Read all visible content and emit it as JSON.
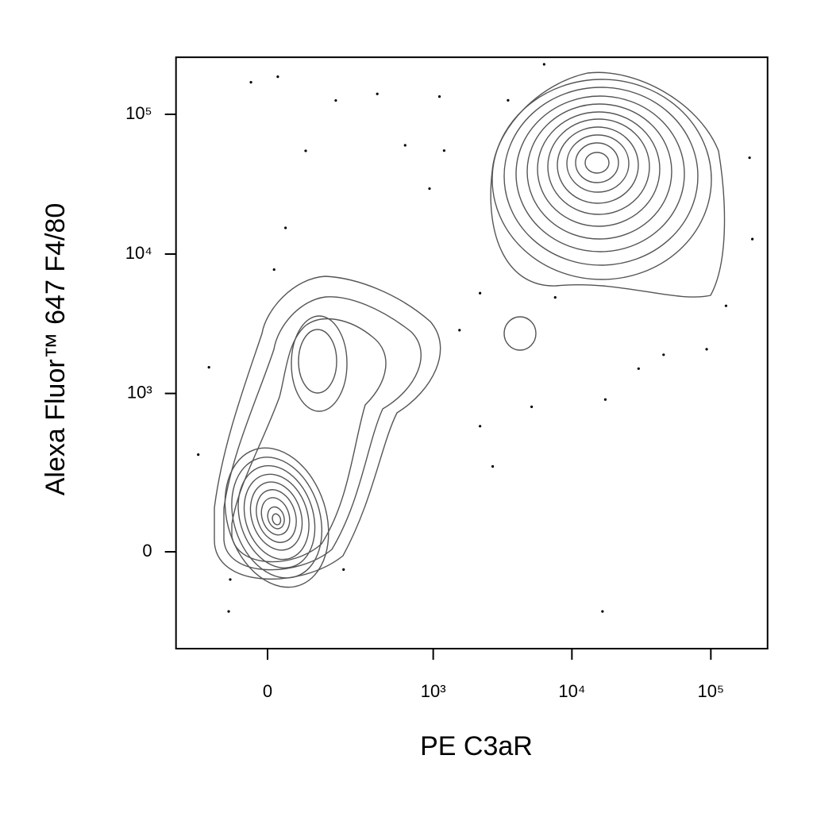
{
  "chart_data": {
    "type": "scatter",
    "x_label": "PE  C3aR",
    "y_label": "Alexa Fluor™ 647  F4/80",
    "scale": "biexponential",
    "color": "#000000",
    "xlim": [
      -280,
      256000
    ],
    "ylim": [
      -350,
      256000
    ],
    "xticks": [
      0,
      {
        "value": 1000,
        "label": "10³"
      },
      {
        "value": 10000,
        "label": "10⁴"
      },
      {
        "value": 100000,
        "label": "10⁵"
      }
    ],
    "yticks": [
      0,
      {
        "value": 1000,
        "label": "10³"
      },
      {
        "value": 10000,
        "label": "10⁴"
      },
      {
        "value": 100000,
        "label": "10⁵"
      }
    ],
    "x": [
      -36,
      22,
      179,
      387,
      1110,
      6310,
      3470,
      87,
      624,
      940,
      -146,
      -183,
      -85,
      -89,
      209,
      16600,
      2690,
      2180,
      5130,
      17400,
      45700,
      93300,
      128600,
      199000,
      190000,
      1550,
      2180,
      7580,
      14,
      39,
      1200,
      30200
    ],
    "values": [
      169500,
      185900,
      125600,
      140000,
      134000,
      228000,
      126000,
      54800,
      60000,
      29400,
      1544,
      352,
      -70,
      -170,
      -44,
      -170,
      284,
      577,
      800,
      904,
      1900,
      2080,
      4260,
      12800,
      48900,
      2850,
      5250,
      4890,
      7740,
      15400,
      55000,
      1510
    ]
  }
}
